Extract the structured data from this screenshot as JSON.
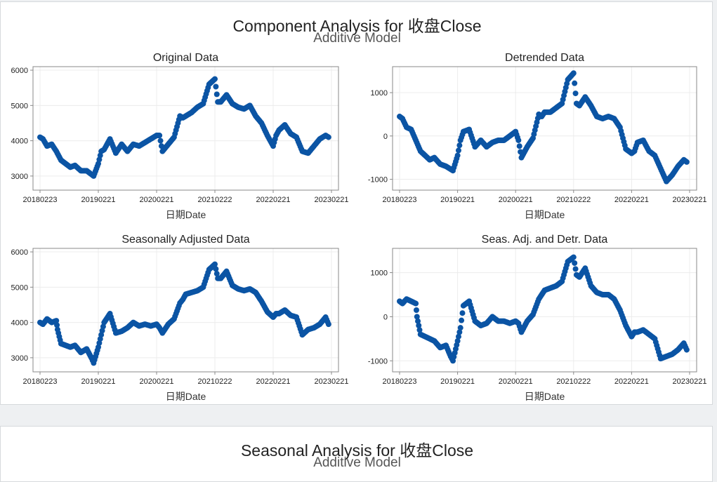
{
  "component": {
    "title": "Component Analysis for 收盘Close",
    "subtitle": "Additive Model"
  },
  "seasonal": {
    "title": "Seasonal Analysis for 收盘Close",
    "subtitle": "Additive Model"
  },
  "colors": {
    "marker": "#0b54a4",
    "grid": "#ececec",
    "axis": "#555555"
  },
  "chart_data": [
    {
      "type": "scatter",
      "title": "Original Data",
      "xlabel": "日期Date",
      "ylabel": "",
      "x_ticks": [
        "20180223",
        "20190221",
        "20200221",
        "20210222",
        "20220221",
        "20230221"
      ],
      "ylim": [
        2600,
        6100
      ],
      "y_ticks": [
        3000,
        4000,
        5000,
        6000
      ],
      "x_index_range": [
        0,
        5
      ],
      "series": [
        {
          "name": "收盘Close",
          "x": [
            0,
            0.05,
            0.12,
            0.2,
            0.28,
            0.36,
            0.44,
            0.52,
            0.6,
            0.7,
            0.8,
            0.92,
            1.0,
            1.05,
            1.1,
            1.2,
            1.3,
            1.4,
            1.5,
            1.6,
            1.7,
            1.8,
            1.9,
            2.0,
            2.05,
            2.1,
            2.2,
            2.3,
            2.4,
            2.45,
            2.5,
            2.6,
            2.7,
            2.8,
            2.9,
            3.0,
            3.05,
            3.1,
            3.2,
            3.3,
            3.4,
            3.5,
            3.6,
            3.7,
            3.8,
            3.9,
            4.0,
            4.05,
            4.1,
            4.2,
            4.3,
            4.4,
            4.5,
            4.6,
            4.7,
            4.8,
            4.9,
            4.95
          ],
          "y": [
            4100,
            4050,
            3850,
            3900,
            3700,
            3450,
            3350,
            3250,
            3300,
            3150,
            3150,
            3000,
            3350,
            3700,
            3750,
            4050,
            3650,
            3900,
            3700,
            3900,
            3850,
            3950,
            4050,
            4150,
            4150,
            3700,
            3900,
            4100,
            4700,
            4650,
            4700,
            4800,
            4950,
            5050,
            5600,
            5750,
            5100,
            5100,
            5300,
            5050,
            4950,
            4900,
            5000,
            4700,
            4500,
            4150,
            3850,
            4150,
            4300,
            4450,
            4200,
            4100,
            3700,
            3650,
            3850,
            4050,
            4150,
            4100
          ]
        }
      ]
    },
    {
      "type": "scatter",
      "title": "Detrended Data",
      "xlabel": "日期Date",
      "ylabel": "",
      "x_ticks": [
        "20180223",
        "20190221",
        "20200221",
        "20210222",
        "20220221",
        "20230221"
      ],
      "ylim": [
        -1250,
        1600
      ],
      "y_ticks": [
        -1000,
        0,
        1000
      ],
      "x_index_range": [
        0,
        5
      ],
      "series": [
        {
          "name": "收盘Close",
          "x": [
            0,
            0.05,
            0.12,
            0.2,
            0.28,
            0.36,
            0.44,
            0.52,
            0.6,
            0.7,
            0.8,
            0.92,
            1.0,
            1.05,
            1.1,
            1.2,
            1.3,
            1.4,
            1.5,
            1.6,
            1.7,
            1.8,
            1.9,
            2.0,
            2.05,
            2.1,
            2.2,
            2.3,
            2.4,
            2.45,
            2.5,
            2.6,
            2.7,
            2.8,
            2.9,
            3.0,
            3.05,
            3.1,
            3.2,
            3.3,
            3.4,
            3.5,
            3.6,
            3.7,
            3.8,
            3.9,
            4.0,
            4.05,
            4.1,
            4.2,
            4.3,
            4.4,
            4.5,
            4.6,
            4.7,
            4.8,
            4.9,
            4.95
          ],
          "y": [
            450,
            400,
            200,
            150,
            -100,
            -350,
            -450,
            -550,
            -500,
            -650,
            -700,
            -800,
            -450,
            -100,
            100,
            150,
            -250,
            -100,
            -250,
            -150,
            -100,
            -100,
            0,
            100,
            -100,
            -500,
            -250,
            -50,
            500,
            450,
            550,
            550,
            650,
            750,
            1300,
            1450,
            750,
            700,
            900,
            700,
            450,
            400,
            450,
            400,
            200,
            -300,
            -400,
            -350,
            -150,
            -100,
            -350,
            -450,
            -750,
            -1050,
            -900,
            -700,
            -550,
            -600
          ]
        }
      ]
    },
    {
      "type": "scatter",
      "title": "Seasonally Adjusted Data",
      "xlabel": "日期Date",
      "ylabel": "",
      "x_ticks": [
        "20180223",
        "20190221",
        "20200221",
        "20210222",
        "20220221",
        "20230221"
      ],
      "ylim": [
        2600,
        6100
      ],
      "y_ticks": [
        3000,
        4000,
        5000,
        6000
      ],
      "x_index_range": [
        0,
        5
      ],
      "series": [
        {
          "name": "收盘Close",
          "x": [
            0,
            0.05,
            0.12,
            0.2,
            0.28,
            0.3,
            0.36,
            0.44,
            0.52,
            0.6,
            0.7,
            0.8,
            0.88,
            0.92,
            1.0,
            1.05,
            1.1,
            1.2,
            1.3,
            1.4,
            1.5,
            1.6,
            1.7,
            1.8,
            1.9,
            2.0,
            2.05,
            2.1,
            2.2,
            2.3,
            2.4,
            2.45,
            2.5,
            2.6,
            2.7,
            2.8,
            2.9,
            3.0,
            3.05,
            3.1,
            3.2,
            3.3,
            3.4,
            3.5,
            3.6,
            3.7,
            3.8,
            3.9,
            4.0,
            4.05,
            4.1,
            4.2,
            4.3,
            4.4,
            4.5,
            4.6,
            4.7,
            4.8,
            4.9,
            4.95
          ],
          "y": [
            4000,
            3950,
            4100,
            4000,
            4050,
            3800,
            3400,
            3350,
            3300,
            3350,
            3150,
            3250,
            3000,
            2850,
            3300,
            3650,
            4000,
            4250,
            3700,
            3750,
            3850,
            4000,
            3900,
            3950,
            3900,
            3950,
            3850,
            3700,
            3950,
            4100,
            4550,
            4650,
            4800,
            4850,
            4900,
            5000,
            5500,
            5650,
            5250,
            5250,
            5450,
            5050,
            4950,
            4900,
            4950,
            4850,
            4600,
            4300,
            4150,
            4250,
            4250,
            4350,
            4200,
            4150,
            3650,
            3800,
            3850,
            3950,
            4150,
            3950
          ]
        }
      ]
    },
    {
      "type": "scatter",
      "title": "Seas. Adj. and Detr. Data",
      "xlabel": "日期Date",
      "ylabel": "",
      "x_ticks": [
        "20180223",
        "20190221",
        "20200221",
        "20210222",
        "20220221",
        "20230221"
      ],
      "ylim": [
        -1250,
        1550
      ],
      "y_ticks": [
        -1000,
        0,
        1000
      ],
      "x_index_range": [
        0,
        5
      ],
      "series": [
        {
          "name": "收盘Close",
          "x": [
            0,
            0.05,
            0.12,
            0.2,
            0.28,
            0.3,
            0.36,
            0.44,
            0.52,
            0.6,
            0.7,
            0.8,
            0.88,
            0.92,
            1.0,
            1.05,
            1.1,
            1.2,
            1.3,
            1.4,
            1.5,
            1.6,
            1.7,
            1.8,
            1.9,
            2.0,
            2.05,
            2.1,
            2.2,
            2.3,
            2.4,
            2.45,
            2.5,
            2.6,
            2.7,
            2.8,
            2.9,
            3.0,
            3.05,
            3.1,
            3.2,
            3.3,
            3.4,
            3.5,
            3.6,
            3.7,
            3.8,
            3.9,
            4.0,
            4.05,
            4.1,
            4.2,
            4.3,
            4.4,
            4.5,
            4.6,
            4.7,
            4.8,
            4.9,
            4.95
          ],
          "y": [
            350,
            300,
            400,
            350,
            300,
            0,
            -400,
            -450,
            -500,
            -550,
            -700,
            -650,
            -900,
            -1000,
            -550,
            -250,
            250,
            350,
            -100,
            -200,
            -150,
            0,
            -100,
            -100,
            -150,
            -100,
            -150,
            -350,
            -100,
            50,
            400,
            500,
            600,
            650,
            700,
            800,
            1250,
            1350,
            950,
            900,
            1100,
            700,
            550,
            500,
            500,
            400,
            150,
            -200,
            -450,
            -350,
            -350,
            -300,
            -400,
            -500,
            -950,
            -900,
            -850,
            -750,
            -600,
            -750
          ]
        }
      ]
    }
  ]
}
